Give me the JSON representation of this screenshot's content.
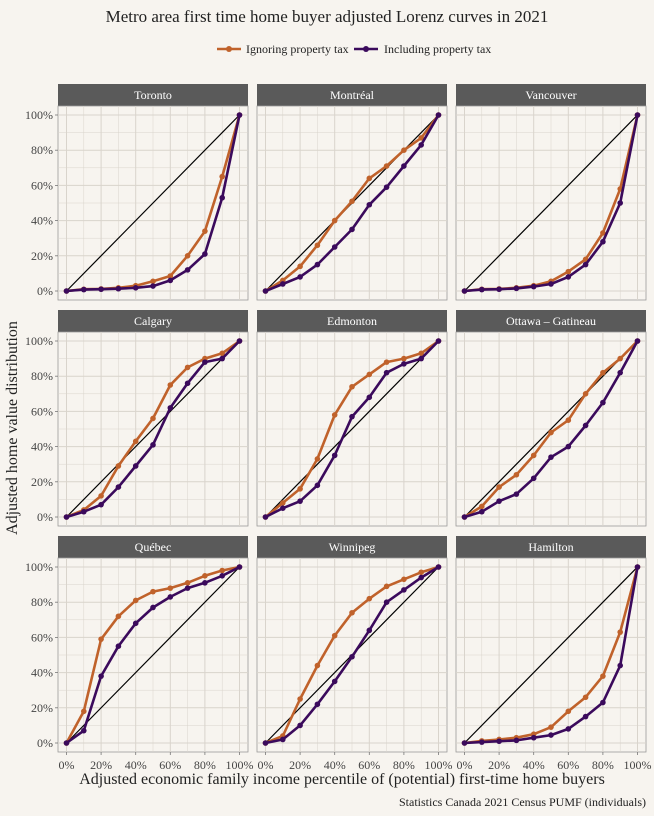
{
  "chart_data": {
    "type": "line",
    "title": "Metro area first time home buyer adjusted Lorenz curves in 2021",
    "xlabel": "Adjusted economic family income percentile of (potential) first-time home buyers",
    "ylabel": "Adjusted home value distribution",
    "caption": "Statistics Canada 2021 Census PUMF (individuals)",
    "xlim": [
      0,
      1
    ],
    "ylim": [
      0,
      1
    ],
    "x_ticks": [
      "0%",
      "20%",
      "40%",
      "60%",
      "80%",
      "100%"
    ],
    "y_ticks": [
      "0%",
      "20%",
      "40%",
      "60%",
      "80%",
      "100%"
    ],
    "legend_position": "top",
    "grid": true,
    "colors": {
      "ignoring": "#c0622b",
      "including": "#3b0a5c",
      "equality": "#000000",
      "strip": "#5a5a5a",
      "panel": "#f7f4ef",
      "gridline": "#d9d4cc"
    },
    "series_names": [
      "Ignoring property tax",
      "Including property tax"
    ],
    "x": [
      0,
      0.1,
      0.2,
      0.3,
      0.4,
      0.5,
      0.6,
      0.7,
      0.8,
      0.9,
      1.0
    ],
    "panels": [
      {
        "name": "Toronto",
        "ignoring": [
          0,
          0.01,
          0.012,
          0.018,
          0.03,
          0.055,
          0.085,
          0.2,
          0.34,
          0.65,
          1.0
        ],
        "including": [
          0,
          0.008,
          0.01,
          0.013,
          0.018,
          0.028,
          0.06,
          0.12,
          0.21,
          0.53,
          1.0
        ]
      },
      {
        "name": "Montréal",
        "ignoring": [
          0,
          0.06,
          0.14,
          0.26,
          0.4,
          0.51,
          0.64,
          0.71,
          0.8,
          0.87,
          1.0
        ],
        "including": [
          0,
          0.04,
          0.08,
          0.15,
          0.25,
          0.35,
          0.49,
          0.59,
          0.71,
          0.83,
          1.0
        ]
      },
      {
        "name": "Vancouver",
        "ignoring": [
          0,
          0.01,
          0.012,
          0.018,
          0.03,
          0.055,
          0.11,
          0.18,
          0.33,
          0.58,
          1.0
        ],
        "including": [
          0,
          0.008,
          0.01,
          0.015,
          0.025,
          0.04,
          0.08,
          0.15,
          0.28,
          0.5,
          1.0
        ]
      },
      {
        "name": "Calgary",
        "ignoring": [
          0,
          0.04,
          0.12,
          0.29,
          0.43,
          0.56,
          0.75,
          0.85,
          0.9,
          0.93,
          1.0
        ],
        "including": [
          0,
          0.03,
          0.07,
          0.17,
          0.29,
          0.41,
          0.62,
          0.76,
          0.88,
          0.9,
          1.0
        ]
      },
      {
        "name": "Edmonton",
        "ignoring": [
          0,
          0.08,
          0.16,
          0.33,
          0.58,
          0.74,
          0.81,
          0.88,
          0.9,
          0.93,
          1.0
        ],
        "including": [
          0,
          0.05,
          0.09,
          0.18,
          0.35,
          0.57,
          0.68,
          0.82,
          0.87,
          0.9,
          1.0
        ]
      },
      {
        "name": "Ottawa – Gatineau",
        "ignoring": [
          0,
          0.06,
          0.17,
          0.24,
          0.35,
          0.48,
          0.55,
          0.7,
          0.82,
          0.9,
          1.0
        ],
        "including": [
          0,
          0.03,
          0.09,
          0.13,
          0.22,
          0.34,
          0.4,
          0.52,
          0.65,
          0.82,
          1.0
        ]
      },
      {
        "name": "Québec",
        "ignoring": [
          0,
          0.18,
          0.59,
          0.72,
          0.81,
          0.86,
          0.88,
          0.91,
          0.95,
          0.98,
          1.0
        ],
        "including": [
          0,
          0.07,
          0.38,
          0.55,
          0.68,
          0.77,
          0.83,
          0.88,
          0.91,
          0.95,
          1.0
        ]
      },
      {
        "name": "Winnipeg",
        "ignoring": [
          0,
          0.04,
          0.25,
          0.44,
          0.61,
          0.74,
          0.82,
          0.89,
          0.93,
          0.97,
          1.0
        ],
        "including": [
          0,
          0.02,
          0.1,
          0.22,
          0.35,
          0.49,
          0.64,
          0.8,
          0.87,
          0.94,
          1.0
        ]
      },
      {
        "name": "Hamilton",
        "ignoring": [
          0,
          0.012,
          0.02,
          0.03,
          0.05,
          0.09,
          0.18,
          0.26,
          0.38,
          0.63,
          1.0
        ],
        "including": [
          0,
          0.005,
          0.01,
          0.015,
          0.03,
          0.045,
          0.08,
          0.15,
          0.23,
          0.44,
          1.0
        ]
      }
    ]
  }
}
